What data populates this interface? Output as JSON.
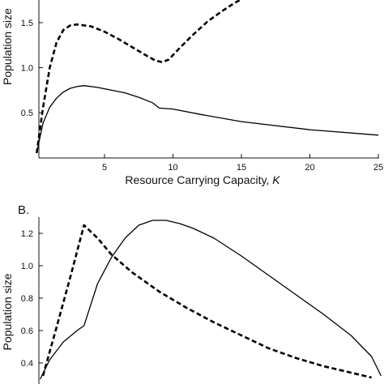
{
  "chart_data": [
    {
      "panel": "",
      "type": "line",
      "xlabel": "Resource Carrying Capacity, K",
      "xlabel_italic_part": "K",
      "ylabel": "Population size",
      "xlim": [
        0,
        25.5
      ],
      "ylim": [
        0,
        1.8
      ],
      "xticks": [
        5,
        10,
        15,
        20,
        25
      ],
      "yticks": [
        0.5,
        1.0,
        1.5
      ],
      "ytick_labels": [
        "0.5",
        "1.0",
        "1.5"
      ],
      "series": [
        {
          "style": "dashed",
          "x": [
            0.05,
            0.5,
            1.0,
            1.5,
            2.0,
            2.5,
            3.0,
            4.0,
            5.0,
            6.0,
            7.0,
            8.0,
            8.7,
            9.2,
            9.7,
            10.5,
            11.5,
            12.5,
            13.5,
            14.5,
            15.5,
            16.0
          ],
          "y": [
            0.05,
            0.55,
            1.0,
            1.28,
            1.42,
            1.47,
            1.48,
            1.46,
            1.4,
            1.32,
            1.23,
            1.14,
            1.08,
            1.06,
            1.09,
            1.22,
            1.37,
            1.51,
            1.62,
            1.72,
            1.8,
            1.84
          ]
        },
        {
          "style": "solid",
          "x": [
            0.05,
            0.5,
            1.0,
            1.5,
            2.0,
            2.5,
            3.0,
            3.5,
            4.5,
            5.5,
            6.5,
            7.5,
            8.5,
            9.0,
            10.0,
            12.0,
            15.0,
            20.0,
            25.0
          ],
          "y": [
            0.05,
            0.38,
            0.56,
            0.66,
            0.73,
            0.77,
            0.79,
            0.8,
            0.78,
            0.75,
            0.72,
            0.67,
            0.61,
            0.55,
            0.54,
            0.48,
            0.4,
            0.31,
            0.25
          ]
        }
      ]
    },
    {
      "panel": "B.",
      "type": "line",
      "xlabel": "",
      "ylabel": "Population size",
      "xlim": [
        0,
        25.5
      ],
      "ylim": [
        0.3,
        1.3
      ],
      "yticks": [
        0.4,
        0.6,
        0.8,
        1.0,
        1.2
      ],
      "ytick_labels": [
        "0.4",
        "0.6",
        "0.8",
        "1.0",
        "1.2"
      ],
      "series": [
        {
          "style": "dashed",
          "x": [
            0.5,
            1.5,
            2.5,
            3.5,
            4.5,
            5.5,
            7.0,
            9.0,
            11.0,
            13.0,
            15.0,
            17.0,
            19.0,
            21.0,
            23.0,
            24.5
          ],
          "y": [
            0.32,
            0.62,
            0.93,
            1.25,
            1.17,
            1.07,
            0.96,
            0.84,
            0.74,
            0.65,
            0.57,
            0.49,
            0.43,
            0.38,
            0.34,
            0.31
          ]
        },
        {
          "style": "solid",
          "x": [
            0.3,
            1.0,
            2.0,
            3.0,
            3.5,
            4.5,
            5.5,
            6.5,
            7.5,
            8.5,
            9.5,
            10.5,
            11.5,
            13.0,
            15.0,
            17.0,
            19.0,
            21.0,
            23.0,
            24.5,
            25.2
          ],
          "y": [
            0.3,
            0.42,
            0.53,
            0.6,
            0.63,
            0.89,
            1.05,
            1.17,
            1.25,
            1.28,
            1.28,
            1.26,
            1.23,
            1.17,
            1.06,
            0.94,
            0.82,
            0.7,
            0.57,
            0.44,
            0.32
          ]
        }
      ]
    }
  ]
}
